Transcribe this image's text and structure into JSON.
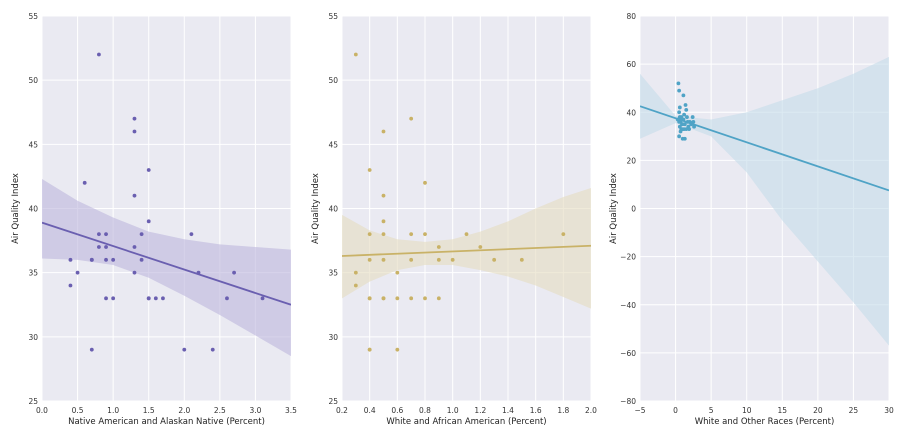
{
  "chart_data": [
    {
      "type": "scatter",
      "xlabel": "Native American and Alaskan Native (Percent)",
      "ylabel": "Air Quality Index",
      "xlim": [
        0.0,
        3.5
      ],
      "ylim": [
        25,
        55
      ],
      "xticks": [
        "0.0",
        "0.5",
        "1.0",
        "1.5",
        "2.0",
        "2.5",
        "3.0",
        "3.5"
      ],
      "yticks": [
        "25",
        "30",
        "35",
        "40",
        "45",
        "50",
        "55"
      ],
      "grid": true,
      "color": "#6a5fb0",
      "band_color": "#bdb6dc",
      "points": [
        [
          0.4,
          34
        ],
        [
          0.4,
          36
        ],
        [
          0.5,
          35
        ],
        [
          0.6,
          42
        ],
        [
          0.7,
          29
        ],
        [
          0.7,
          36
        ],
        [
          0.7,
          36
        ],
        [
          0.8,
          52
        ],
        [
          0.8,
          38
        ],
        [
          0.8,
          37
        ],
        [
          0.9,
          38
        ],
        [
          0.9,
          37
        ],
        [
          0.9,
          36
        ],
        [
          0.9,
          33
        ],
        [
          1.0,
          36
        ],
        [
          1.0,
          33
        ],
        [
          1.3,
          47
        ],
        [
          1.3,
          46
        ],
        [
          1.3,
          41
        ],
        [
          1.3,
          37
        ],
        [
          1.3,
          35
        ],
        [
          1.4,
          38
        ],
        [
          1.4,
          36
        ],
        [
          1.5,
          43
        ],
        [
          1.5,
          39
        ],
        [
          1.5,
          33
        ],
        [
          1.5,
          33
        ],
        [
          1.6,
          33
        ],
        [
          1.7,
          33
        ],
        [
          2.0,
          29
        ],
        [
          2.1,
          38
        ],
        [
          2.2,
          35
        ],
        [
          2.4,
          29
        ],
        [
          2.6,
          33
        ],
        [
          2.7,
          35
        ],
        [
          3.1,
          33
        ]
      ],
      "fit": {
        "x": [
          0.0,
          3.5
        ],
        "y": [
          38.9,
          32.5
        ]
      },
      "ci_upper": [
        [
          0.0,
          42.3
        ],
        [
          0.5,
          40.6
        ],
        [
          1.0,
          39.3
        ],
        [
          1.5,
          38.2
        ],
        [
          2.0,
          37.6
        ],
        [
          2.5,
          37.2
        ],
        [
          3.0,
          37.0
        ],
        [
          3.5,
          36.8
        ]
      ],
      "ci_lower": [
        [
          0.0,
          36.1
        ],
        [
          0.5,
          36.0
        ],
        [
          1.0,
          35.6
        ],
        [
          1.5,
          34.6
        ],
        [
          2.0,
          33.2
        ],
        [
          2.5,
          31.7
        ],
        [
          3.0,
          30.1
        ],
        [
          3.5,
          28.5
        ]
      ]
    },
    {
      "type": "scatter",
      "xlabel": "White and African American (Percent)",
      "ylabel": "Air Quality Index",
      "xlim": [
        0.2,
        2.0
      ],
      "ylim": [
        25,
        55
      ],
      "xticks": [
        "0.2",
        "0.4",
        "0.6",
        "0.8",
        "1.0",
        "1.2",
        "1.4",
        "1.6",
        "1.8",
        "2.0"
      ],
      "yticks": [
        "25",
        "30",
        "35",
        "40",
        "45",
        "50",
        "55"
      ],
      "grid": true,
      "color": "#c9b267",
      "band_color": "#e4dcc0",
      "points": [
        [
          0.3,
          52
        ],
        [
          0.3,
          35
        ],
        [
          0.3,
          34
        ],
        [
          0.4,
          43
        ],
        [
          0.4,
          38
        ],
        [
          0.4,
          36
        ],
        [
          0.4,
          33
        ],
        [
          0.4,
          33
        ],
        [
          0.4,
          29
        ],
        [
          0.4,
          29
        ],
        [
          0.5,
          46
        ],
        [
          0.5,
          41
        ],
        [
          0.5,
          39
        ],
        [
          0.5,
          38
        ],
        [
          0.5,
          36
        ],
        [
          0.5,
          33
        ],
        [
          0.5,
          33
        ],
        [
          0.6,
          35
        ],
        [
          0.6,
          33
        ],
        [
          0.6,
          29
        ],
        [
          0.7,
          47
        ],
        [
          0.7,
          38
        ],
        [
          0.7,
          36
        ],
        [
          0.7,
          33
        ],
        [
          0.8,
          42
        ],
        [
          0.8,
          38
        ],
        [
          0.8,
          33
        ],
        [
          0.9,
          37
        ],
        [
          0.9,
          36
        ],
        [
          0.9,
          33
        ],
        [
          1.0,
          36
        ],
        [
          1.1,
          38
        ],
        [
          1.2,
          37
        ],
        [
          1.3,
          36
        ],
        [
          1.5,
          36
        ],
        [
          1.8,
          38
        ]
      ],
      "fit": {
        "x": [
          0.2,
          2.0
        ],
        "y": [
          36.3,
          37.1
        ]
      },
      "ci_upper": [
        [
          0.2,
          39.5
        ],
        [
          0.4,
          38.3
        ],
        [
          0.6,
          37.6
        ],
        [
          0.8,
          37.4
        ],
        [
          1.0,
          37.6
        ],
        [
          1.2,
          38.2
        ],
        [
          1.4,
          39.0
        ],
        [
          1.6,
          40.0
        ],
        [
          1.8,
          40.9
        ],
        [
          2.0,
          41.6
        ]
      ],
      "ci_lower": [
        [
          0.2,
          33.0
        ],
        [
          0.4,
          34.3
        ],
        [
          0.6,
          35.2
        ],
        [
          0.8,
          35.6
        ],
        [
          1.0,
          35.6
        ],
        [
          1.2,
          35.2
        ],
        [
          1.4,
          34.7
        ],
        [
          1.6,
          34.0
        ],
        [
          1.8,
          33.1
        ],
        [
          2.0,
          32.2
        ]
      ]
    },
    {
      "type": "scatter",
      "xlabel": "White and Other Races (Percent)",
      "ylabel": "Air Quality Index",
      "xlim": [
        -5,
        30
      ],
      "ylim": [
        -80,
        80
      ],
      "xticks": [
        "−5",
        "0",
        "5",
        "10",
        "15",
        "20",
        "25",
        "30"
      ],
      "yticks": [
        "−80",
        "−60",
        "−40",
        "−20",
        "0",
        "20",
        "40",
        "60",
        "80"
      ],
      "grid": true,
      "color": "#4fa3c6",
      "band_color": "#c4dcea",
      "points": [
        [
          0.4,
          52
        ],
        [
          0.5,
          49
        ],
        [
          0.6,
          42
        ],
        [
          0.5,
          40
        ],
        [
          0.6,
          38
        ],
        [
          0.8,
          38
        ],
        [
          0.9,
          37
        ],
        [
          0.5,
          36
        ],
        [
          0.7,
          36
        ],
        [
          0.9,
          35
        ],
        [
          1.0,
          35
        ],
        [
          0.6,
          34
        ],
        [
          0.8,
          33
        ],
        [
          1.2,
          33
        ],
        [
          0.5,
          30
        ],
        [
          1.0,
          29
        ],
        [
          1.3,
          29
        ],
        [
          1.1,
          47
        ],
        [
          1.4,
          43
        ],
        [
          1.5,
          41
        ],
        [
          1.2,
          39
        ],
        [
          1.6,
          38
        ],
        [
          1.7,
          36
        ],
        [
          1.3,
          35
        ],
        [
          2.0,
          36
        ],
        [
          2.4,
          38
        ],
        [
          2.5,
          36
        ],
        [
          2.6,
          34
        ],
        [
          1.9,
          33
        ],
        [
          1.5,
          33
        ],
        [
          2.2,
          35
        ],
        [
          1.1,
          37
        ],
        [
          0.7,
          32
        ],
        [
          1.8,
          34
        ],
        [
          0.3,
          37
        ],
        [
          1.0,
          33
        ]
      ],
      "fit": {
        "x": [
          -5,
          30
        ],
        "y": [
          42.5,
          7.5
        ]
      },
      "ci_upper": [
        [
          -5,
          56
        ],
        [
          0,
          38.5
        ],
        [
          5,
          37
        ],
        [
          10,
          40
        ],
        [
          15,
          45
        ],
        [
          20,
          50
        ],
        [
          25,
          56
        ],
        [
          30,
          63
        ]
      ],
      "ci_lower": [
        [
          -5,
          29
        ],
        [
          0,
          35.5
        ],
        [
          5,
          30
        ],
        [
          10,
          15
        ],
        [
          15,
          -5
        ],
        [
          20,
          -22
        ],
        [
          25,
          -39
        ],
        [
          30,
          -57
        ]
      ]
    }
  ]
}
